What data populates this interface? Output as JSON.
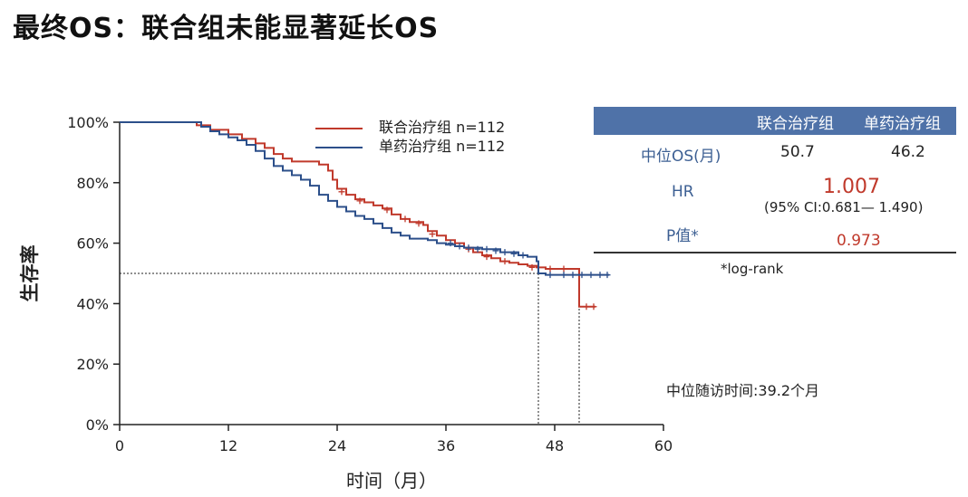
{
  "page_title": "最终OS：联合组未能显著延长OS",
  "legend": [
    {
      "label": "联合治疗组  n=112",
      "color": "#c0392b"
    },
    {
      "label": "单药治疗组  n=112",
      "color": "#2c4f8a"
    }
  ],
  "table": {
    "col_headers": [
      "联合治疗组",
      "单药治疗组"
    ],
    "median_os_label": "中位OS(月)",
    "median_os_combo": "50.7",
    "median_os_mono": "46.2",
    "hr_label": "HR",
    "hr_value": "1.007",
    "hr_ci": "(95% CI:0.681— 1.490)",
    "p_label": "P值*",
    "p_value": "0.973",
    "footnote": "*log-rank"
  },
  "followup_text": "中位随访时间:39.2个月",
  "colors": {
    "combo": "#c0392b",
    "mono": "#2c4f8a",
    "header_bg": "#4f72a8"
  },
  "chart_data": {
    "type": "line",
    "title": "",
    "xlabel": "时间（月）",
    "ylabel": "生存率",
    "xlim": [
      0,
      60
    ],
    "ylim": [
      0,
      100
    ],
    "x_ticks": [
      "0",
      "12",
      "24",
      "36",
      "48",
      "60"
    ],
    "y_ticks": [
      "0%",
      "20%",
      "40%",
      "60%",
      "80%",
      "100%"
    ],
    "median_reference": {
      "survival": 50,
      "combo_median_months": 50.7,
      "mono_median_months": 46.2
    },
    "series": [
      {
        "name": "联合治疗组  n=112",
        "color": "#c0392b",
        "points": [
          [
            0,
            100
          ],
          [
            4,
            100
          ],
          [
            8.5,
            99
          ],
          [
            10,
            97.5
          ],
          [
            12,
            96
          ],
          [
            13.5,
            94.5
          ],
          [
            15,
            93
          ],
          [
            16,
            91.5
          ],
          [
            17,
            89.5
          ],
          [
            18,
            88
          ],
          [
            19,
            87
          ],
          [
            22,
            86
          ],
          [
            23,
            84
          ],
          [
            23.5,
            81
          ],
          [
            24,
            78
          ],
          [
            25,
            76
          ],
          [
            26,
            74.5
          ],
          [
            27,
            73.5
          ],
          [
            28,
            72.5
          ],
          [
            29,
            71.5
          ],
          [
            30,
            69.5
          ],
          [
            31,
            68
          ],
          [
            32,
            67
          ],
          [
            33.5,
            66
          ],
          [
            34,
            64
          ],
          [
            35,
            62.5
          ],
          [
            36,
            61
          ],
          [
            37,
            60
          ],
          [
            38,
            58.5
          ],
          [
            39,
            57
          ],
          [
            40,
            56
          ],
          [
            41,
            55
          ],
          [
            42,
            54
          ],
          [
            43,
            53.5
          ],
          [
            44,
            53
          ],
          [
            45,
            52.5
          ],
          [
            46,
            52
          ],
          [
            47,
            51.5
          ],
          [
            50.7,
            51.5
          ],
          [
            50.7,
            39
          ],
          [
            52.5,
            39
          ]
        ],
        "censor_marks": [
          [
            24.5,
            77
          ],
          [
            26.5,
            74
          ],
          [
            29.5,
            71
          ],
          [
            31.5,
            68
          ],
          [
            33,
            66.5
          ],
          [
            34.5,
            63
          ],
          [
            38.5,
            58
          ],
          [
            40.5,
            55.5
          ],
          [
            42.5,
            54
          ],
          [
            45.5,
            52
          ],
          [
            47.5,
            51.5
          ],
          [
            49,
            51.5
          ],
          [
            51.5,
            39
          ],
          [
            52.3,
            39
          ]
        ]
      },
      {
        "name": "单药治疗组  n=112",
        "color": "#2c4f8a",
        "points": [
          [
            0,
            100
          ],
          [
            8,
            100
          ],
          [
            9,
            98.5
          ],
          [
            10,
            97
          ],
          [
            11,
            96
          ],
          [
            12,
            95
          ],
          [
            13,
            94
          ],
          [
            14,
            92.5
          ],
          [
            15,
            90.5
          ],
          [
            16,
            88
          ],
          [
            17,
            85.5
          ],
          [
            18,
            84
          ],
          [
            19,
            82.5
          ],
          [
            20,
            81
          ],
          [
            21,
            79
          ],
          [
            22,
            76
          ],
          [
            23,
            74
          ],
          [
            24,
            72
          ],
          [
            25,
            70.5
          ],
          [
            26,
            69
          ],
          [
            27,
            68
          ],
          [
            28,
            66.5
          ],
          [
            29,
            65
          ],
          [
            30,
            63.5
          ],
          [
            31,
            62.5
          ],
          [
            32,
            61.5
          ],
          [
            34,
            61
          ],
          [
            35,
            60
          ],
          [
            36,
            59.5
          ],
          [
            37,
            59
          ],
          [
            38,
            58.5
          ],
          [
            40,
            58
          ],
          [
            42,
            57
          ],
          [
            44,
            56
          ],
          [
            45,
            55.5
          ],
          [
            46,
            54
          ],
          [
            46.2,
            50
          ],
          [
            47,
            49.5
          ],
          [
            54,
            49.5
          ]
        ],
        "censor_marks": [
          [
            36.5,
            60
          ],
          [
            37.5,
            59
          ],
          [
            38.5,
            58.5
          ],
          [
            39.5,
            58
          ],
          [
            40.5,
            58
          ],
          [
            41.5,
            57.5
          ],
          [
            42.5,
            57
          ],
          [
            43.5,
            56.5
          ],
          [
            44.5,
            56
          ],
          [
            47.5,
            49.5
          ],
          [
            49,
            49.5
          ],
          [
            50,
            49.5
          ],
          [
            51,
            49.5
          ],
          [
            52,
            49.5
          ],
          [
            53,
            49.5
          ],
          [
            53.8,
            49.5
          ]
        ]
      }
    ]
  }
}
